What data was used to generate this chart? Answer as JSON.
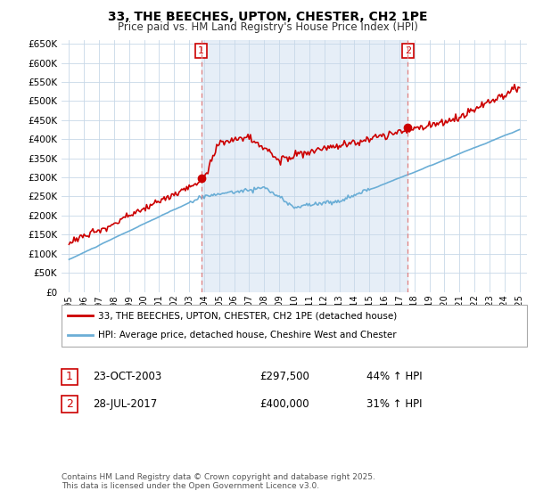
{
  "title": "33, THE BEECHES, UPTON, CHESTER, CH2 1PE",
  "subtitle": "Price paid vs. HM Land Registry's House Price Index (HPI)",
  "sale1_date": "23-OCT-2003",
  "sale1_price": 297500,
  "sale1_hpi": "44% ↑ HPI",
  "sale1_label": "1",
  "sale1_x": 2003.81,
  "sale2_date": "28-JUL-2017",
  "sale2_price": 400000,
  "sale2_label": "2",
  "sale2_hpi": "31% ↑ HPI",
  "sale2_x": 2017.56,
  "legend_line1": "33, THE BEECHES, UPTON, CHESTER, CH2 1PE (detached house)",
  "legend_line2": "HPI: Average price, detached house, Cheshire West and Chester",
  "footer": "Contains HM Land Registry data © Crown copyright and database right 2025.\nThis data is licensed under the Open Government Licence v3.0.",
  "hpi_color": "#6baed6",
  "price_color": "#cc0000",
  "dashed_line_color": "#e08080",
  "shade_color": "#dce8f5",
  "ylim": [
    0,
    660000
  ],
  "xlim_start": 1994.5,
  "xlim_end": 2025.5,
  "ylabel_ticks": [
    0,
    50000,
    100000,
    150000,
    200000,
    250000,
    300000,
    350000,
    400000,
    450000,
    500000,
    550000,
    600000,
    650000
  ],
  "xticks": [
    1995,
    1996,
    1997,
    1998,
    1999,
    2000,
    2001,
    2002,
    2003,
    2004,
    2005,
    2006,
    2007,
    2008,
    2009,
    2010,
    2011,
    2012,
    2013,
    2014,
    2015,
    2016,
    2017,
    2018,
    2019,
    2020,
    2021,
    2022,
    2023,
    2024,
    2025
  ]
}
